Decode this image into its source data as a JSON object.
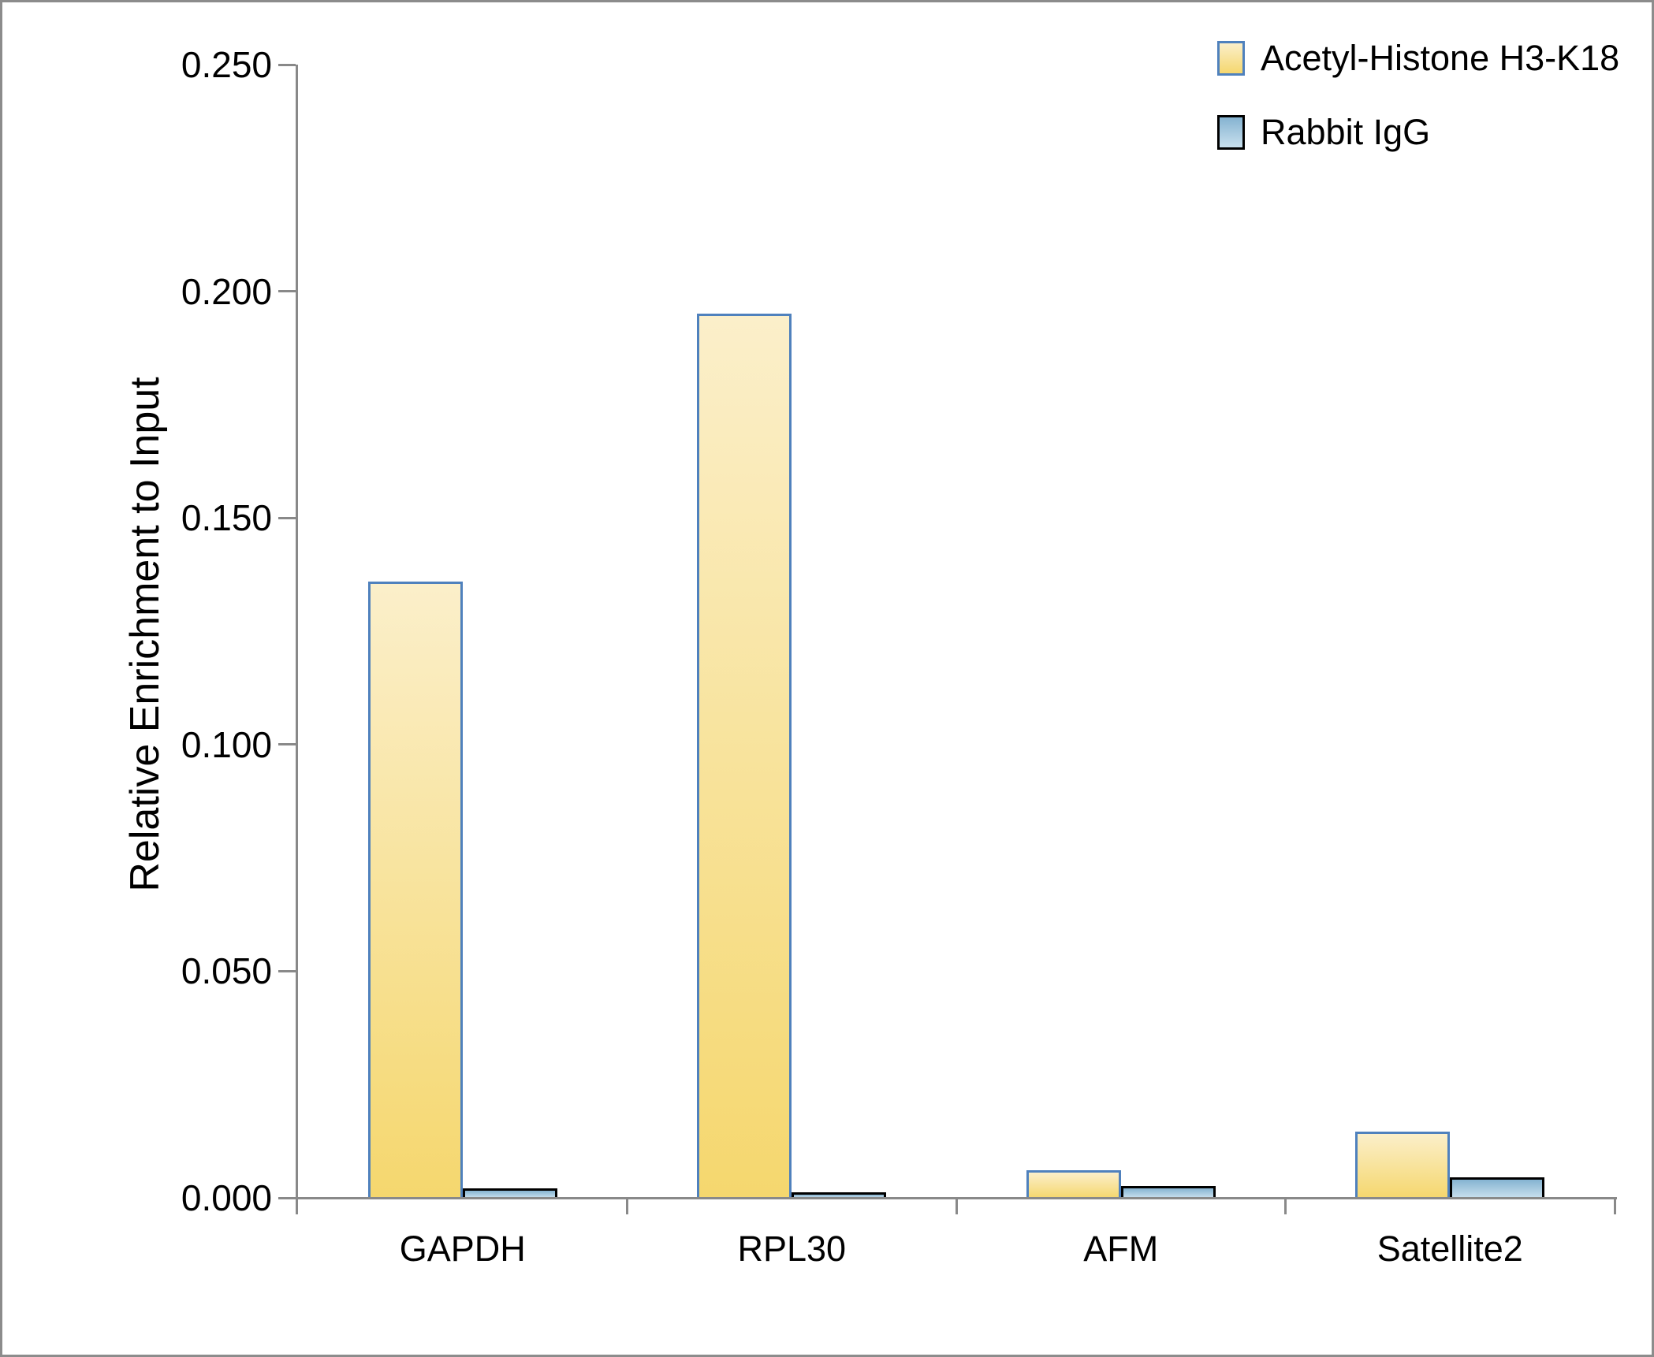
{
  "chart_data": {
    "type": "bar",
    "title": "",
    "xlabel": "",
    "ylabel": "Relative Enrichment to Input",
    "categories": [
      "GAPDH",
      "RPL30",
      "AFM",
      "Satellite2"
    ],
    "series": [
      {
        "name": "Acetyl-Histone H3-K18",
        "values": [
          0.136,
          0.195,
          0.006,
          0.0146
        ],
        "fill_top": "#fbefca",
        "fill_bottom": "#f5d76e",
        "border": "#4f81bd"
      },
      {
        "name": "Rabbit IgG",
        "values": [
          0.002,
          0.0012,
          0.0026,
          0.0045
        ],
        "fill_top": "#85b3d1",
        "fill_bottom": "#c9e0ee",
        "border": "#000000"
      }
    ],
    "ylim": [
      0,
      0.25
    ],
    "yticks": [
      "0.000",
      "0.050",
      "0.100",
      "0.150",
      "0.200",
      "0.250"
    ],
    "ytick_values": [
      0,
      0.05,
      0.1,
      0.15,
      0.2,
      0.25
    ],
    "grid": false,
    "legend_position": "top-right",
    "axis_color": "#898989",
    "frame_color": "#8c8c8c",
    "text_color": "#000000",
    "background_color": "#ffffff"
  }
}
